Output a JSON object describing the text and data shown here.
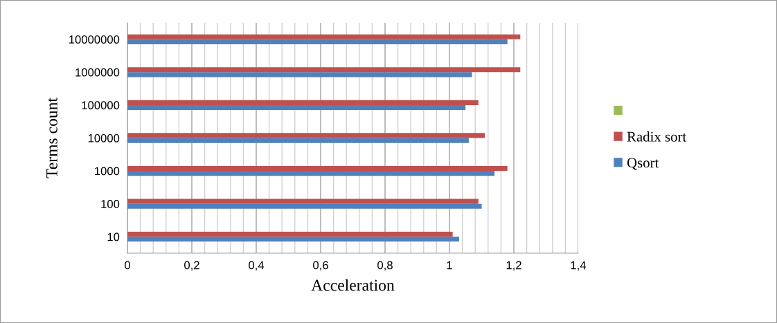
{
  "chart_data": {
    "type": "bar",
    "orientation": "horizontal",
    "xlabel": "Acceleration",
    "ylabel": "Terms count",
    "categories": [
      "10000000",
      "1000000",
      "100000",
      "10000",
      "1000",
      "100",
      "10"
    ],
    "series": [
      {
        "name": "Qsort",
        "color": "#4f81bd",
        "values": [
          1.18,
          1.07,
          1.05,
          1.06,
          1.14,
          1.1,
          1.03
        ]
      },
      {
        "name": "Radix sort",
        "color": "#c0504d",
        "values": [
          1.22,
          1.22,
          1.09,
          1.11,
          1.18,
          1.09,
          1.01
        ]
      },
      {
        "color": "#9bbb59",
        "values": [
          null,
          null,
          null,
          null,
          null,
          null,
          null
        ]
      }
    ],
    "xlim": [
      0,
      1.4
    ],
    "xticks": [
      0,
      {
        "value": 0.2,
        "label": "0,2"
      },
      {
        "value": 0.4,
        "label": "0,4"
      },
      {
        "value": 0.6,
        "label": "0,6"
      },
      {
        "value": 0.8,
        "label": "0,8"
      },
      1,
      {
        "value": 1.2,
        "label": "1,2"
      },
      {
        "value": 1.4,
        "label": "1,4"
      }
    ],
    "grid": "x",
    "legend": "right"
  }
}
